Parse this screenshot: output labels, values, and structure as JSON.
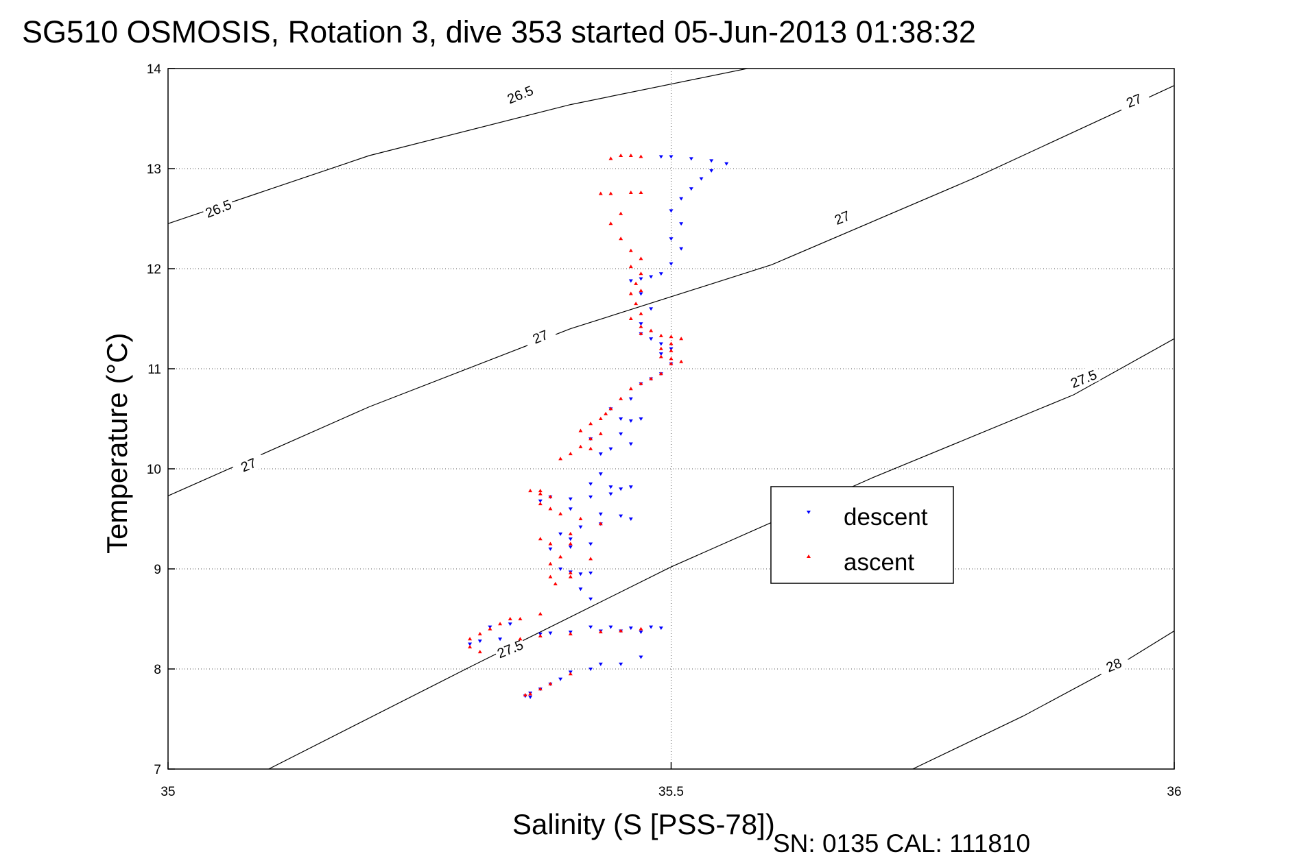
{
  "chart_data": {
    "type": "scatter",
    "title": "SG510 OSMOSIS, Rotation 3, dive 353 started 05-Jun-2013 01:38:32",
    "xlabel": "Salinity (S [PSS-78])",
    "ylabel": "Temperature (°C)",
    "footer": "SN: 0135  CAL: 111810",
    "xlim": [
      35,
      36
    ],
    "ylim": [
      7,
      14
    ],
    "x_ticks": [
      {
        "value": 35,
        "label": "35"
      },
      {
        "value": 35.5,
        "label": "35.5"
      },
      {
        "value": 36,
        "label": "36"
      }
    ],
    "y_ticks": [
      {
        "value": 7,
        "label": "7"
      },
      {
        "value": 8,
        "label": "8"
      },
      {
        "value": 9,
        "label": "9"
      },
      {
        "value": 10,
        "label": "10"
      },
      {
        "value": 11,
        "label": "11"
      },
      {
        "value": 12,
        "label": "12"
      },
      {
        "value": 13,
        "label": "13"
      },
      {
        "value": 14,
        "label": "14"
      }
    ],
    "grid": "dotted",
    "legend": {
      "placement": "center-right",
      "entries": [
        {
          "name": "descent",
          "color": "#0000ff",
          "marker": "triangle-down"
        },
        {
          "name": "ascent",
          "color": "#ff0000",
          "marker": "triangle-up"
        }
      ]
    },
    "density_contours": [
      {
        "label": "26.5",
        "points": [
          [
            35.0,
            12.45
          ],
          [
            35.2,
            13.13
          ],
          [
            35.4,
            13.64
          ],
          [
            35.6,
            14.05
          ]
        ],
        "labels_at": [
          [
            35.05,
            12.6
          ],
          [
            35.35,
            13.74
          ]
        ]
      },
      {
        "label": "27",
        "points": [
          [
            35.0,
            9.73
          ],
          [
            35.2,
            10.62
          ],
          [
            35.4,
            11.4
          ],
          [
            35.6,
            12.04
          ],
          [
            35.8,
            12.9
          ],
          [
            36.0,
            13.83
          ]
        ],
        "labels_at": [
          [
            35.08,
            10.04
          ],
          [
            35.37,
            11.32
          ],
          [
            35.67,
            12.51
          ],
          [
            35.96,
            13.68
          ]
        ]
      },
      {
        "label": "27.5",
        "points": [
          [
            35.1,
            7.0
          ],
          [
            35.3,
            8.02
          ],
          [
            35.5,
            9.02
          ],
          [
            35.7,
            9.91
          ],
          [
            35.9,
            10.74
          ],
          [
            36.0,
            11.3
          ]
        ],
        "labels_at": [
          [
            35.34,
            8.2
          ],
          [
            35.91,
            10.9
          ]
        ]
      },
      {
        "label": "28",
        "points": [
          [
            35.74,
            7.0
          ],
          [
            35.85,
            7.53
          ],
          [
            35.95,
            8.07
          ],
          [
            36.0,
            8.38
          ]
        ],
        "labels_at": [
          [
            35.94,
            8.04
          ]
        ]
      }
    ],
    "series": [
      {
        "name": "descent",
        "color": "#0000ff",
        "marker": "triangle-down",
        "points": [
          [
            35.49,
            13.12
          ],
          [
            35.5,
            13.12
          ],
          [
            35.52,
            13.1
          ],
          [
            35.54,
            13.08
          ],
          [
            35.555,
            13.05
          ],
          [
            35.54,
            12.98
          ],
          [
            35.53,
            12.9
          ],
          [
            35.52,
            12.8
          ],
          [
            35.51,
            12.7
          ],
          [
            35.5,
            12.58
          ],
          [
            35.51,
            12.45
          ],
          [
            35.5,
            12.3
          ],
          [
            35.51,
            12.2
          ],
          [
            35.5,
            12.05
          ],
          [
            35.49,
            11.95
          ],
          [
            35.48,
            11.92
          ],
          [
            35.47,
            11.9
          ],
          [
            35.46,
            11.88
          ],
          [
            35.47,
            11.75
          ],
          [
            35.48,
            11.6
          ],
          [
            35.47,
            11.45
          ],
          [
            35.47,
            11.35
          ],
          [
            35.48,
            11.3
          ],
          [
            35.49,
            11.25
          ],
          [
            35.5,
            11.2
          ],
          [
            35.49,
            11.15
          ],
          [
            35.5,
            11.05
          ],
          [
            35.49,
            10.95
          ],
          [
            35.48,
            10.9
          ],
          [
            35.47,
            10.85
          ],
          [
            35.46,
            10.7
          ],
          [
            35.44,
            10.6
          ],
          [
            35.45,
            10.5
          ],
          [
            35.46,
            10.48
          ],
          [
            35.47,
            10.5
          ],
          [
            35.45,
            10.35
          ],
          [
            35.46,
            10.25
          ],
          [
            35.44,
            10.2
          ],
          [
            35.43,
            10.15
          ],
          [
            35.42,
            10.3
          ],
          [
            35.43,
            9.95
          ],
          [
            35.42,
            9.85
          ],
          [
            35.44,
            9.82
          ],
          [
            35.45,
            9.8
          ],
          [
            35.46,
            9.82
          ],
          [
            35.44,
            9.75
          ],
          [
            35.42,
            9.72
          ],
          [
            35.4,
            9.7
          ],
          [
            35.38,
            9.72
          ],
          [
            35.37,
            9.68
          ],
          [
            35.4,
            9.6
          ],
          [
            35.43,
            9.55
          ],
          [
            35.45,
            9.53
          ],
          [
            35.46,
            9.5
          ],
          [
            35.43,
            9.45
          ],
          [
            35.41,
            9.42
          ],
          [
            35.39,
            9.35
          ],
          [
            35.4,
            9.3
          ],
          [
            35.42,
            9.25
          ],
          [
            35.4,
            9.22
          ],
          [
            35.38,
            9.2
          ],
          [
            35.39,
            9.0
          ],
          [
            35.4,
            8.97
          ],
          [
            35.41,
            8.95
          ],
          [
            35.42,
            8.96
          ],
          [
            35.41,
            8.8
          ],
          [
            35.42,
            8.7
          ],
          [
            35.42,
            8.42
          ],
          [
            35.44,
            8.42
          ],
          [
            35.46,
            8.41
          ],
          [
            35.48,
            8.42
          ],
          [
            35.49,
            8.41
          ],
          [
            35.47,
            8.37
          ],
          [
            35.45,
            8.38
          ],
          [
            35.43,
            8.38
          ],
          [
            35.4,
            8.37
          ],
          [
            35.38,
            8.36
          ],
          [
            35.37,
            8.35
          ],
          [
            35.33,
            8.3
          ],
          [
            35.31,
            8.28
          ],
          [
            35.3,
            8.25
          ],
          [
            35.32,
            8.42
          ],
          [
            35.34,
            8.45
          ],
          [
            35.43,
            8.05
          ],
          [
            35.42,
            8.0
          ],
          [
            35.4,
            7.97
          ],
          [
            35.39,
            7.9
          ],
          [
            35.38,
            7.85
          ],
          [
            35.37,
            7.8
          ],
          [
            35.36,
            7.76
          ],
          [
            35.355,
            7.73
          ],
          [
            35.36,
            7.72
          ],
          [
            35.47,
            8.12
          ],
          [
            35.45,
            8.05
          ]
        ]
      },
      {
        "name": "ascent",
        "color": "#ff0000",
        "marker": "triangle-up",
        "points": [
          [
            35.45,
            13.13
          ],
          [
            35.46,
            13.13
          ],
          [
            35.47,
            13.12
          ],
          [
            35.44,
            13.1
          ],
          [
            35.46,
            12.76
          ],
          [
            35.47,
            12.76
          ],
          [
            35.44,
            12.75
          ],
          [
            35.43,
            12.75
          ],
          [
            35.45,
            12.55
          ],
          [
            35.44,
            12.45
          ],
          [
            35.45,
            12.3
          ],
          [
            35.46,
            12.18
          ],
          [
            35.47,
            12.1
          ],
          [
            35.46,
            12.02
          ],
          [
            35.47,
            11.95
          ],
          [
            35.465,
            11.85
          ],
          [
            35.47,
            11.78
          ],
          [
            35.46,
            11.75
          ],
          [
            35.465,
            11.65
          ],
          [
            35.47,
            11.55
          ],
          [
            35.46,
            11.5
          ],
          [
            35.47,
            11.42
          ],
          [
            35.48,
            11.38
          ],
          [
            35.47,
            11.35
          ],
          [
            35.49,
            11.33
          ],
          [
            35.5,
            11.32
          ],
          [
            35.51,
            11.3
          ],
          [
            35.5,
            11.25
          ],
          [
            35.49,
            11.2
          ],
          [
            35.5,
            11.18
          ],
          [
            35.49,
            11.12
          ],
          [
            35.5,
            11.1
          ],
          [
            35.51,
            11.07
          ],
          [
            35.5,
            11.05
          ],
          [
            35.49,
            10.95
          ],
          [
            35.48,
            10.9
          ],
          [
            35.47,
            10.85
          ],
          [
            35.46,
            10.8
          ],
          [
            35.45,
            10.7
          ],
          [
            35.44,
            10.6
          ],
          [
            35.435,
            10.55
          ],
          [
            35.43,
            10.5
          ],
          [
            35.42,
            10.45
          ],
          [
            35.41,
            10.38
          ],
          [
            35.42,
            10.3
          ],
          [
            35.41,
            10.22
          ],
          [
            35.4,
            10.15
          ],
          [
            35.39,
            10.1
          ],
          [
            35.43,
            10.35
          ],
          [
            35.42,
            10.2
          ],
          [
            35.36,
            9.78
          ],
          [
            35.37,
            9.75
          ],
          [
            35.38,
            9.72
          ],
          [
            35.37,
            9.65
          ],
          [
            35.39,
            9.55
          ],
          [
            35.41,
            9.5
          ],
          [
            35.43,
            9.45
          ],
          [
            35.4,
            9.35
          ],
          [
            35.37,
            9.3
          ],
          [
            35.38,
            9.25
          ],
          [
            35.4,
            9.25
          ],
          [
            35.39,
            9.12
          ],
          [
            35.38,
            9.05
          ],
          [
            35.4,
            8.96
          ],
          [
            35.4,
            8.92
          ],
          [
            35.385,
            8.85
          ],
          [
            35.37,
            8.55
          ],
          [
            35.35,
            8.5
          ],
          [
            35.34,
            8.5
          ],
          [
            35.33,
            8.45
          ],
          [
            35.32,
            8.4
          ],
          [
            35.31,
            8.35
          ],
          [
            35.3,
            8.3
          ],
          [
            35.3,
            8.22
          ],
          [
            35.31,
            8.17
          ],
          [
            35.35,
            8.3
          ],
          [
            35.37,
            8.33
          ],
          [
            35.4,
            8.35
          ],
          [
            35.43,
            8.37
          ],
          [
            35.45,
            8.38
          ],
          [
            35.47,
            8.4
          ],
          [
            35.4,
            7.95
          ],
          [
            35.38,
            7.85
          ],
          [
            35.37,
            7.8
          ],
          [
            35.36,
            7.75
          ],
          [
            35.355,
            7.74
          ],
          [
            35.37,
            9.78
          ],
          [
            35.38,
            9.6
          ],
          [
            35.42,
            9.1
          ],
          [
            35.38,
            8.92
          ]
        ]
      }
    ]
  }
}
